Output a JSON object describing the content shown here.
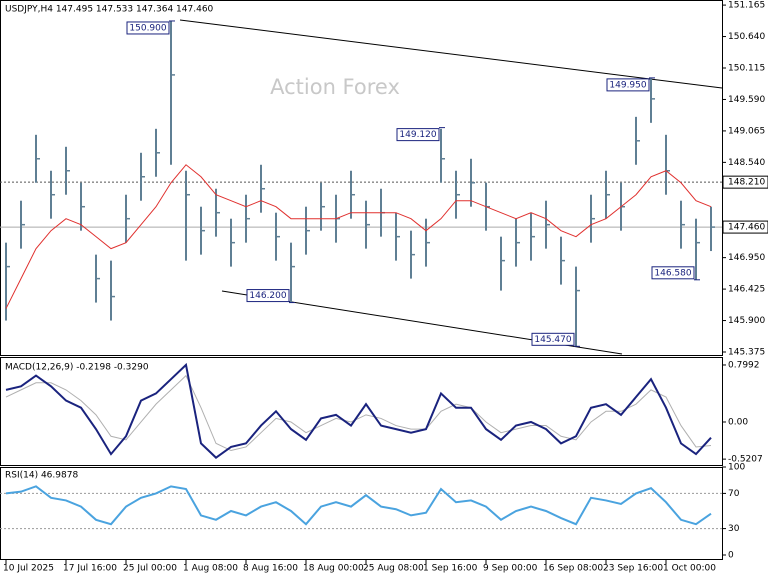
{
  "chart_data": [
    {
      "type": "ohlc",
      "title": "USDJPY,H4 147.495 147.533 147.364 147.460",
      "watermark": "Action Forex",
      "color": "#5f7f94",
      "high": [
        147.2,
        147.9,
        149.0,
        148.4,
        148.8,
        148.2,
        147.0,
        146.9,
        148.0,
        148.7,
        149.1,
        150.9,
        148.4,
        147.8,
        148.1,
        147.6,
        148.0,
        148.5,
        147.7,
        147.2,
        147.8,
        148.2,
        148.0,
        148.4,
        147.9,
        148.1,
        147.7,
        147.4,
        147.6,
        149.1,
        148.4,
        148.6,
        148.2,
        147.3,
        147.6,
        147.7,
        147.9,
        147.3,
        146.8,
        148.0,
        148.4,
        148.2,
        149.3,
        149.95,
        149.0,
        147.9,
        147.6,
        147.8
      ],
      "low": [
        145.9,
        147.1,
        148.2,
        147.6,
        148.0,
        147.4,
        146.2,
        145.9,
        147.2,
        147.9,
        148.3,
        148.5,
        146.9,
        147.0,
        147.3,
        146.8,
        147.2,
        147.7,
        146.9,
        146.2,
        147.0,
        147.4,
        147.2,
        147.6,
        147.1,
        147.3,
        146.9,
        146.6,
        146.8,
        148.2,
        147.6,
        147.8,
        147.4,
        146.4,
        146.8,
        146.9,
        147.1,
        146.5,
        145.47,
        147.2,
        147.6,
        147.4,
        148.5,
        149.2,
        148.0,
        147.1,
        146.58,
        147.06
      ],
      "close": [
        146.8,
        147.5,
        148.6,
        148.0,
        148.4,
        147.8,
        146.6,
        146.3,
        147.6,
        148.3,
        148.7,
        150.0,
        148.0,
        147.4,
        147.7,
        147.2,
        147.6,
        148.1,
        147.3,
        146.8,
        147.4,
        147.8,
        147.6,
        148.0,
        147.5,
        147.7,
        147.3,
        147.0,
        147.2,
        148.6,
        148.0,
        148.2,
        147.8,
        146.9,
        147.2,
        147.3,
        147.5,
        146.9,
        146.4,
        147.6,
        148.0,
        147.8,
        148.9,
        149.6,
        148.4,
        147.5,
        147.2,
        147.46
      ],
      "ma": {
        "color": "#e0312f",
        "values": [
          146.1,
          146.6,
          147.1,
          147.4,
          147.6,
          147.5,
          147.3,
          147.1,
          147.2,
          147.5,
          147.8,
          148.2,
          148.5,
          148.3,
          148.0,
          147.9,
          147.8,
          147.9,
          147.8,
          147.6,
          147.6,
          147.6,
          147.6,
          147.7,
          147.7,
          147.7,
          147.7,
          147.6,
          147.4,
          147.6,
          147.9,
          147.9,
          147.8,
          147.7,
          147.6,
          147.7,
          147.6,
          147.4,
          147.3,
          147.5,
          147.6,
          147.8,
          148.0,
          148.3,
          148.4,
          148.2,
          147.9,
          147.8
        ]
      },
      "annotations": [
        {
          "index": 11,
          "value": 150.9,
          "label": "150.900"
        },
        {
          "index": 19,
          "value": 146.2,
          "label": "146.200"
        },
        {
          "index": 29,
          "value": 149.12,
          "label": "149.120"
        },
        {
          "index": 38,
          "value": 145.47,
          "label": "145.470"
        },
        {
          "index": 43,
          "value": 149.95,
          "label": "149.950"
        },
        {
          "index": 46,
          "value": 146.58,
          "label": "146.580"
        }
      ],
      "hline": {
        "value": 148.21,
        "label": "148.210"
      },
      "last": {
        "value": 147.46,
        "label": "147.460"
      },
      "ylim": [
        145.325,
        151.25
      ],
      "yticks": [
        {
          "value": 151.165,
          "label": "151.165"
        },
        {
          "value": 150.64,
          "label": "150.640"
        },
        {
          "value": 150.115,
          "label": "150.115"
        },
        {
          "value": 149.59,
          "label": "149.590"
        },
        {
          "value": 149.065,
          "label": "149.065"
        },
        {
          "value": 148.54,
          "label": "148.540"
        },
        {
          "value": 146.95,
          "label": "146.950"
        },
        {
          "value": 146.425,
          "label": "146.425"
        },
        {
          "value": 145.9,
          "label": "145.900"
        },
        {
          "value": 145.375,
          "label": "145.375"
        }
      ]
    },
    {
      "type": "line",
      "title": "MACD(12,26,9) -0.2198 -0.3290",
      "series": [
        {
          "color": "#b0b0b0",
          "values": [
            0.35,
            0.45,
            0.55,
            0.55,
            0.45,
            0.3,
            0.1,
            -0.2,
            -0.25,
            0.0,
            0.25,
            0.45,
            0.65,
            0.2,
            -0.3,
            -0.4,
            -0.35,
            -0.15,
            0.05,
            0.0,
            -0.15,
            -0.05,
            0.05,
            0.0,
            0.1,
            0.05,
            -0.05,
            -0.1,
            -0.1,
            0.15,
            0.25,
            0.2,
            0.0,
            -0.15,
            -0.1,
            -0.05,
            -0.05,
            -0.2,
            -0.25,
            0.0,
            0.15,
            0.15,
            0.25,
            0.45,
            0.35,
            -0.05,
            -0.35,
            -0.33
          ]
        },
        {
          "color": "#1a237e",
          "values": [
            0.45,
            0.5,
            0.65,
            0.5,
            0.3,
            0.2,
            -0.1,
            -0.45,
            -0.2,
            0.3,
            0.4,
            0.6,
            0.8,
            -0.3,
            -0.5,
            -0.35,
            -0.3,
            -0.05,
            0.15,
            -0.1,
            -0.25,
            0.05,
            0.1,
            -0.05,
            0.25,
            -0.05,
            -0.1,
            -0.15,
            -0.1,
            0.4,
            0.2,
            0.2,
            -0.1,
            -0.25,
            -0.05,
            0.0,
            -0.1,
            -0.3,
            -0.2,
            0.2,
            0.25,
            0.1,
            0.35,
            0.6,
            0.2,
            -0.3,
            -0.45,
            -0.22
          ]
        }
      ],
      "ylim": [
        -0.603,
        0.911
      ],
      "yticks": [
        0.7992,
        {
          "value": 0,
          "label": "0.00"
        },
        -0.5207
      ]
    },
    {
      "type": "line",
      "title": "RSI(14) 46.9878",
      "series": [
        {
          "color": "#4aa3df",
          "values": [
            70,
            72,
            78,
            65,
            62,
            55,
            40,
            35,
            55,
            65,
            70,
            78,
            75,
            45,
            40,
            50,
            45,
            55,
            60,
            50,
            35,
            55,
            60,
            55,
            68,
            55,
            52,
            45,
            48,
            75,
            60,
            62,
            55,
            40,
            50,
            55,
            50,
            42,
            35,
            65,
            62,
            58,
            70,
            76,
            60,
            40,
            35,
            47
          ]
        }
      ],
      "levels": [
        70,
        30
      ],
      "ylim": [
        0,
        100
      ],
      "yticks": [
        100,
        70,
        30,
        0
      ],
      "categories": [
        "10 Jul 2025",
        null,
        null,
        null,
        "17 Jul 16:00",
        null,
        null,
        null,
        "25 Jul 00:00",
        null,
        null,
        null,
        "1 Aug 08:00",
        null,
        null,
        null,
        "8 Aug 16:00",
        null,
        null,
        null,
        "18 Aug 00:00",
        null,
        null,
        null,
        "25 Aug 08:00",
        null,
        null,
        null,
        "1 Sep 16:00",
        null,
        null,
        null,
        "9 Sep 00:00",
        null,
        null,
        null,
        "16 Sep 08:00",
        null,
        null,
        null,
        "23 Sep 16:00",
        null,
        null,
        null,
        "1 Oct 00:00",
        null,
        null,
        null
      ]
    }
  ]
}
